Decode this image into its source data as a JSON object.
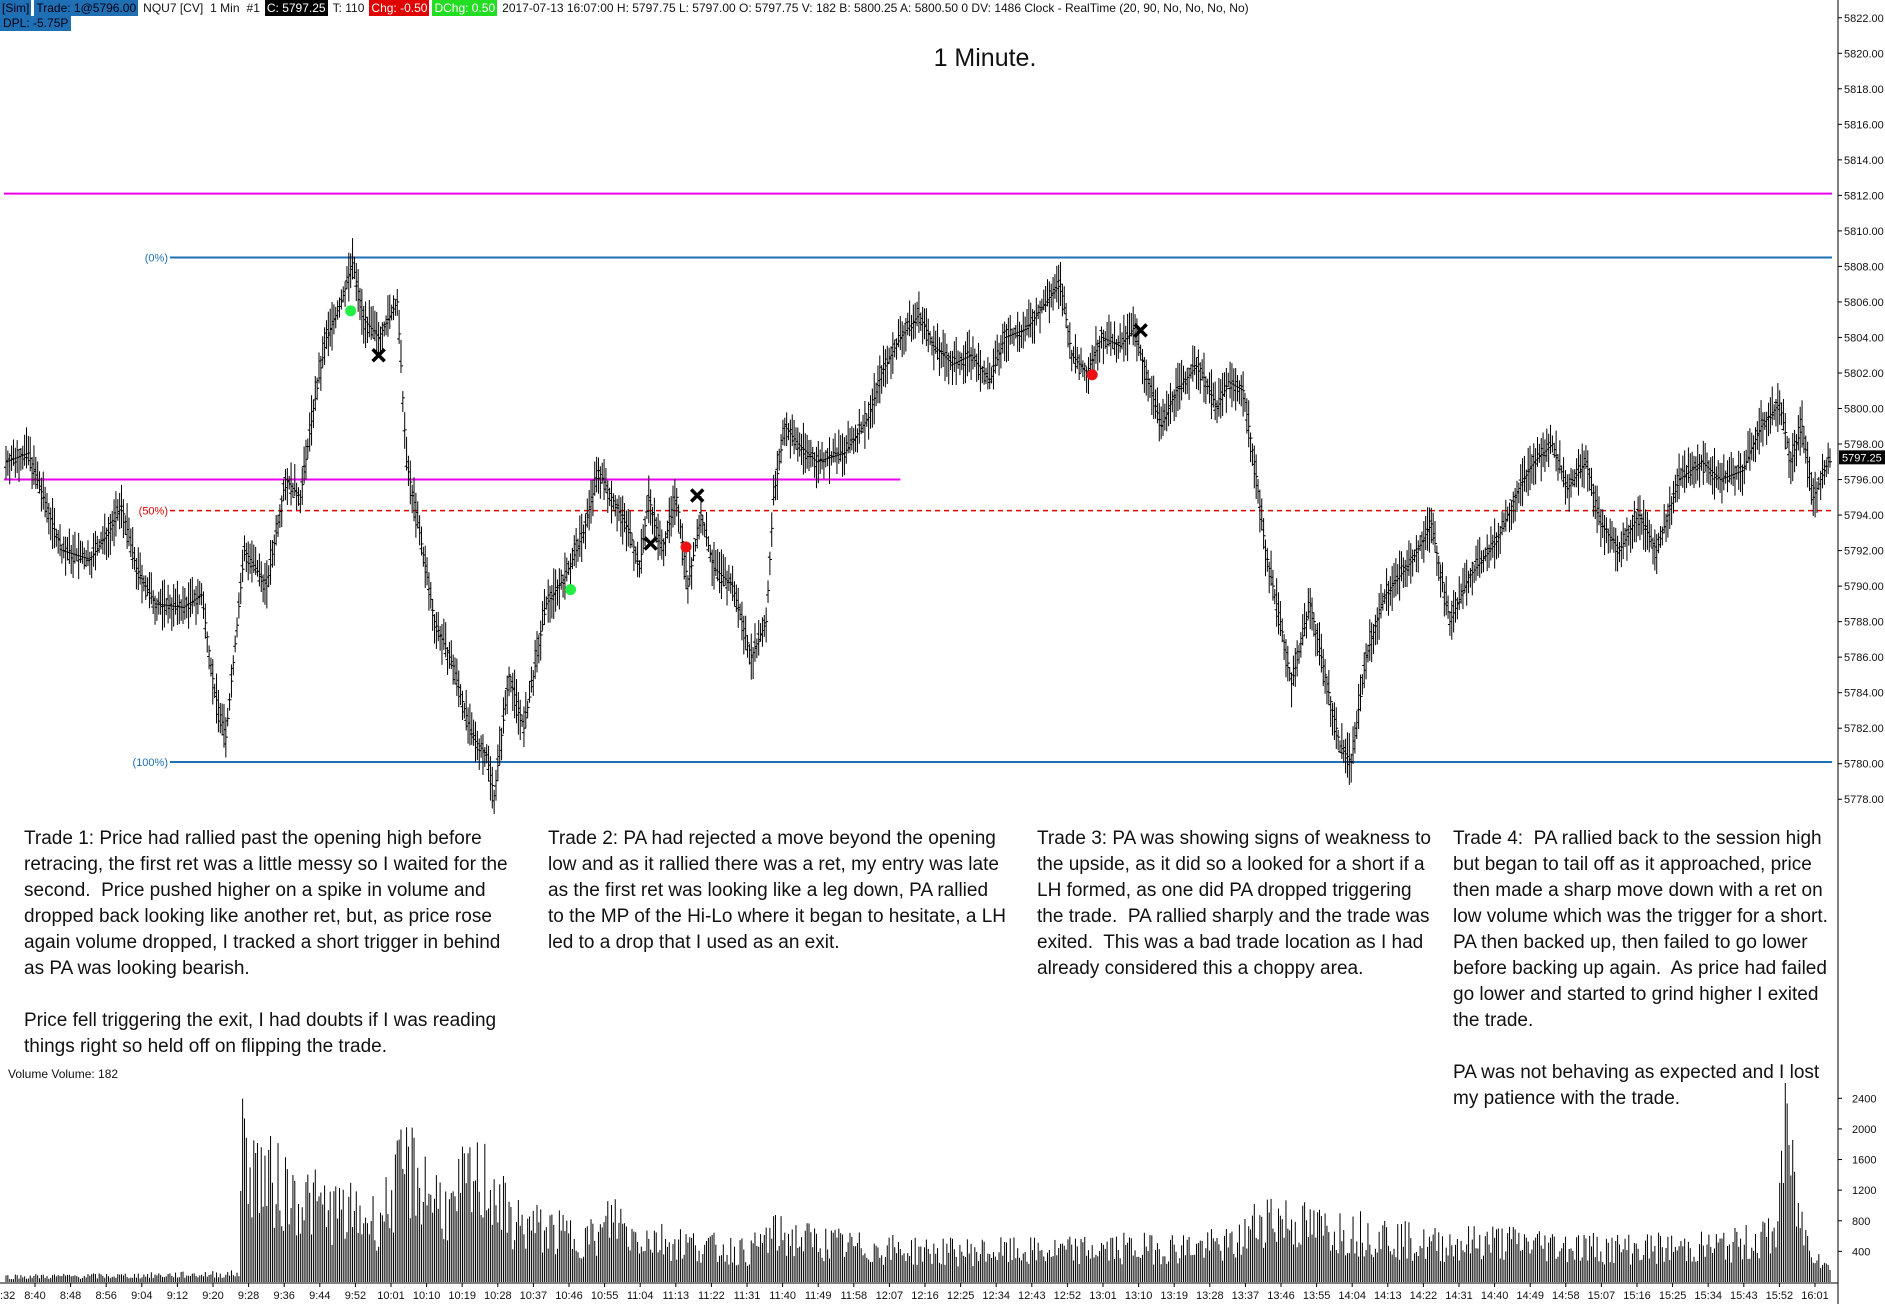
{
  "status_bar": {
    "account": "[Sim]",
    "trade": "Trade: 1@5796.00",
    "instrument": "NQU7 [CV]",
    "interval": "1 Min",
    "chart_no": "#1",
    "close": "C: 5797.25",
    "ticks": "T: 110",
    "change": "Chg: -0.50",
    "day_change": "DChg: 0.50",
    "info": "2017-07-13 16:07:00 H: 5797.75 L: 5797.00 O: 5797.75 V: 182 B: 5800.25 A: 5800.50 0 DV: 1486 Clock - RealTime (20, 90, No, No, No, No)",
    "dpl": "DPL: -5.75P"
  },
  "chart_title": "1 Minute.",
  "fib_labels": {
    "top": "(0%)",
    "mid": "(50%)",
    "bottom": "(100%)"
  },
  "colors": {
    "candle": "#000000",
    "fib_line": "#1f6fb5",
    "magenta_line": "#ee00ee",
    "mid_line": "#e00000",
    "entry_long": "#22ee44",
    "entry_short": "#ee1111",
    "last_price_bg": "#000000"
  },
  "notes": [
    "Trade 1: Price had rallied past the opening high before retracing, the first ret was a little messy so I waited for the second.  Price pushed higher on a spike in volume and dropped back looking like another ret, but, as price rose again volume dropped, I tracked a short trigger in behind as PA was looking bearish.\n\nPrice fell triggering the exit, I had doubts if I was reading things right so held off on flipping the trade.",
    "Trade 2: PA had rejected a move beyond the opening low and as it rallied there was a ret, my entry was late as the first ret was looking like a leg down, PA rallied to the MP of the Hi-Lo where it began to hesitate, a LH led to a drop that I used as an exit.",
    "Trade 3: PA was showing signs of weakness to the upside, as it did so a looked for a short if a LH formed, as one did PA dropped triggering the trade.  PA rallied sharply and the trade was exited.  This was a bad trade location as I had already considered this a choppy area.",
    "Trade 4:  PA rallied back to the session high but began to tail off as it approached, price then made a sharp move down with a ret on low volume which was the trigger for a short.  PA then backed up, then failed to go lower before backing up again.  As price had failed go lower and started to grind higher I exited the trade.\n\nPA was not behaving as expected and I lost my patience with the trade."
  ],
  "volume_label": "Volume  Volume: 182",
  "chart_data": {
    "type": "bar",
    "title": "1 Minute.",
    "instrument": "NQU7",
    "price_axis": {
      "ylim": [
        5777,
        5823
      ],
      "ticks": [
        5778,
        5780,
        5782,
        5784,
        5786,
        5788,
        5790,
        5792,
        5794,
        5796,
        5798,
        5800,
        5802,
        5804,
        5806,
        5808,
        5810,
        5812,
        5814,
        5816,
        5818,
        5820,
        5822
      ],
      "tick_labels": [
        "5778.00",
        "5780.00",
        "5782.00",
        "5784.00",
        "5786.00",
        "5788.00",
        "5790.00",
        "5792.00",
        "5794.00",
        "5796.00",
        "5798.00",
        "5800.00",
        "5802.00",
        "5804.00",
        "5806.00",
        "5808.00",
        "5810.00",
        "5812.00",
        "5814.00",
        "5816.00",
        "5818.00",
        "5820.00",
        "5822.00"
      ],
      "last_price": "5797.25"
    },
    "volume_axis": {
      "ylim": [
        0,
        2600
      ],
      "ticks": [
        400,
        800,
        1200,
        1600,
        2000,
        2400
      ],
      "tick_labels": [
        "400",
        "800",
        "1200",
        "1600",
        "2000",
        "2400"
      ]
    },
    "time_axis": {
      "start_label": ":32",
      "labels": [
        "8:40",
        "8:48",
        "8:56",
        "9:04",
        "9:12",
        "9:20",
        "9:28",
        "9:36",
        "9:44",
        "9:52",
        "10:01",
        "10:10",
        "10:19",
        "10:28",
        "10:37",
        "10:46",
        "10:55",
        "11:04",
        "11:13",
        "11:22",
        "11:31",
        "11:40",
        "11:49",
        "11:58",
        "12:07",
        "12:16",
        "12:25",
        "12:34",
        "12:43",
        "12:52",
        "13:01",
        "13:10",
        "13:19",
        "13:28",
        "13:37",
        "13:46",
        "13:55",
        "14:04",
        "14:13",
        "14:22",
        "14:31",
        "14:40",
        "14:49",
        "14:58",
        "15:07",
        "15:16",
        "15:25",
        "15:34",
        "15:43",
        "15:52",
        "16:01"
      ]
    },
    "levels": {
      "fib_0": 5808.5,
      "fib_50": 5794.25,
      "fib_100": 5780.1,
      "magenta_high": 5812.1,
      "magenta_mid_range": [
        5796.0,
        0,
        0.5
      ]
    },
    "price_path": [
      [
        0,
        5797
      ],
      [
        12,
        5797.5
      ],
      [
        20,
        5795
      ],
      [
        30,
        5792
      ],
      [
        45,
        5791.5
      ],
      [
        55,
        5793
      ],
      [
        62,
        5794.5
      ],
      [
        70,
        5791
      ],
      [
        80,
        5789
      ],
      [
        95,
        5788.8
      ],
      [
        105,
        5789.5
      ],
      [
        112,
        5784
      ],
      [
        118,
        5781.5
      ],
      [
        128,
        5792
      ],
      [
        140,
        5790
      ],
      [
        150,
        5796
      ],
      [
        158,
        5795
      ],
      [
        165,
        5800
      ],
      [
        172,
        5804
      ],
      [
        180,
        5806
      ],
      [
        186,
        5808.2
      ],
      [
        192,
        5805
      ],
      [
        200,
        5804
      ],
      [
        210,
        5806
      ],
      [
        215,
        5797
      ],
      [
        222,
        5793
      ],
      [
        230,
        5788
      ],
      [
        240,
        5785.5
      ],
      [
        250,
        5781.5
      ],
      [
        258,
        5780.5
      ],
      [
        262,
        5778.2
      ],
      [
        270,
        5785
      ],
      [
        278,
        5782
      ],
      [
        290,
        5789
      ],
      [
        300,
        5790.5
      ],
      [
        310,
        5793
      ],
      [
        318,
        5796.5
      ],
      [
        325,
        5795
      ],
      [
        335,
        5793
      ],
      [
        340,
        5791
      ],
      [
        345,
        5795
      ],
      [
        352,
        5792
      ],
      [
        360,
        5795
      ],
      [
        366,
        5790
      ],
      [
        373,
        5794
      ],
      [
        380,
        5791
      ],
      [
        390,
        5790
      ],
      [
        400,
        5786
      ],
      [
        408,
        5788
      ],
      [
        412,
        5795
      ],
      [
        418,
        5799
      ],
      [
        425,
        5798
      ],
      [
        435,
        5797
      ],
      [
        450,
        5797.5
      ],
      [
        463,
        5799.5
      ],
      [
        470,
        5802
      ],
      [
        480,
        5804
      ],
      [
        490,
        5805.3
      ],
      [
        498,
        5803.5
      ],
      [
        508,
        5802.5
      ],
      [
        518,
        5803
      ],
      [
        528,
        5801.5
      ],
      [
        536,
        5804
      ],
      [
        548,
        5804.5
      ],
      [
        558,
        5806
      ],
      [
        566,
        5807
      ],
      [
        572,
        5803
      ],
      [
        580,
        5802
      ],
      [
        588,
        5804
      ],
      [
        598,
        5803.5
      ],
      [
        605,
        5804.5
      ],
      [
        612,
        5802
      ],
      [
        620,
        5799
      ],
      [
        628,
        5801
      ],
      [
        640,
        5802.5
      ],
      [
        650,
        5800
      ],
      [
        656,
        5801.5
      ],
      [
        664,
        5801
      ],
      [
        670,
        5797
      ],
      [
        676,
        5792
      ],
      [
        684,
        5788
      ],
      [
        690,
        5784.5
      ],
      [
        700,
        5789
      ],
      [
        708,
        5785
      ],
      [
        716,
        5781
      ],
      [
        722,
        5780.1
      ],
      [
        730,
        5786
      ],
      [
        740,
        5789.5
      ],
      [
        755,
        5791.5
      ],
      [
        765,
        5793.5
      ],
      [
        775,
        5788
      ],
      [
        785,
        5790.5
      ],
      [
        800,
        5792.5
      ],
      [
        812,
        5795.5
      ],
      [
        820,
        5797
      ],
      [
        830,
        5798
      ],
      [
        838,
        5795.5
      ],
      [
        848,
        5797
      ],
      [
        856,
        5793.5
      ],
      [
        866,
        5792
      ],
      [
        876,
        5794
      ],
      [
        886,
        5792
      ],
      [
        898,
        5796
      ],
      [
        910,
        5797
      ],
      [
        920,
        5796
      ],
      [
        932,
        5796.5
      ],
      [
        942,
        5799
      ],
      [
        952,
        5800.3
      ],
      [
        958,
        5797
      ],
      [
        964,
        5799
      ],
      [
        970,
        5795
      ],
      [
        978,
        5797
      ]
    ],
    "volume_profile": [
      [
        0,
        80
      ],
      [
        60,
        90
      ],
      [
        125,
        120
      ],
      [
        126,
        2000
      ],
      [
        140,
        1500
      ],
      [
        170,
        1100
      ],
      [
        200,
        900
      ],
      [
        215,
        1700
      ],
      [
        240,
        1000
      ],
      [
        245,
        1400
      ],
      [
        260,
        1500
      ],
      [
        270,
        900
      ],
      [
        300,
        700
      ],
      [
        318,
        650
      ],
      [
        326,
        1000
      ],
      [
        335,
        700
      ],
      [
        380,
        500
      ],
      [
        400,
        450
      ],
      [
        410,
        700
      ],
      [
        460,
        500
      ],
      [
        500,
        450
      ],
      [
        560,
        450
      ],
      [
        600,
        500
      ],
      [
        620,
        500
      ],
      [
        660,
        550
      ],
      [
        676,
        1000
      ],
      [
        700,
        800
      ],
      [
        740,
        700
      ],
      [
        760,
        550
      ],
      [
        800,
        600
      ],
      [
        860,
        500
      ],
      [
        900,
        500
      ],
      [
        930,
        550
      ],
      [
        950,
        700
      ],
      [
        955,
        2450
      ],
      [
        960,
        1300
      ],
      [
        965,
        700
      ],
      [
        978,
        200
      ]
    ],
    "markers": [
      {
        "type": "long-entry",
        "bar": 185,
        "price": 5805.5
      },
      {
        "type": "exit",
        "bar": 200,
        "price": 5803
      },
      {
        "type": "long-entry",
        "bar": 303,
        "price": 5789.8
      },
      {
        "type": "exit",
        "bar": 346,
        "price": 5792.4
      },
      {
        "type": "short-entry",
        "bar": 365,
        "price": 5792.2
      },
      {
        "type": "exit",
        "bar": 371,
        "price": 5795.1
      },
      {
        "type": "short-entry",
        "bar": 583,
        "price": 5801.9
      },
      {
        "type": "exit",
        "bar": 609,
        "price": 5804.4
      }
    ]
  }
}
